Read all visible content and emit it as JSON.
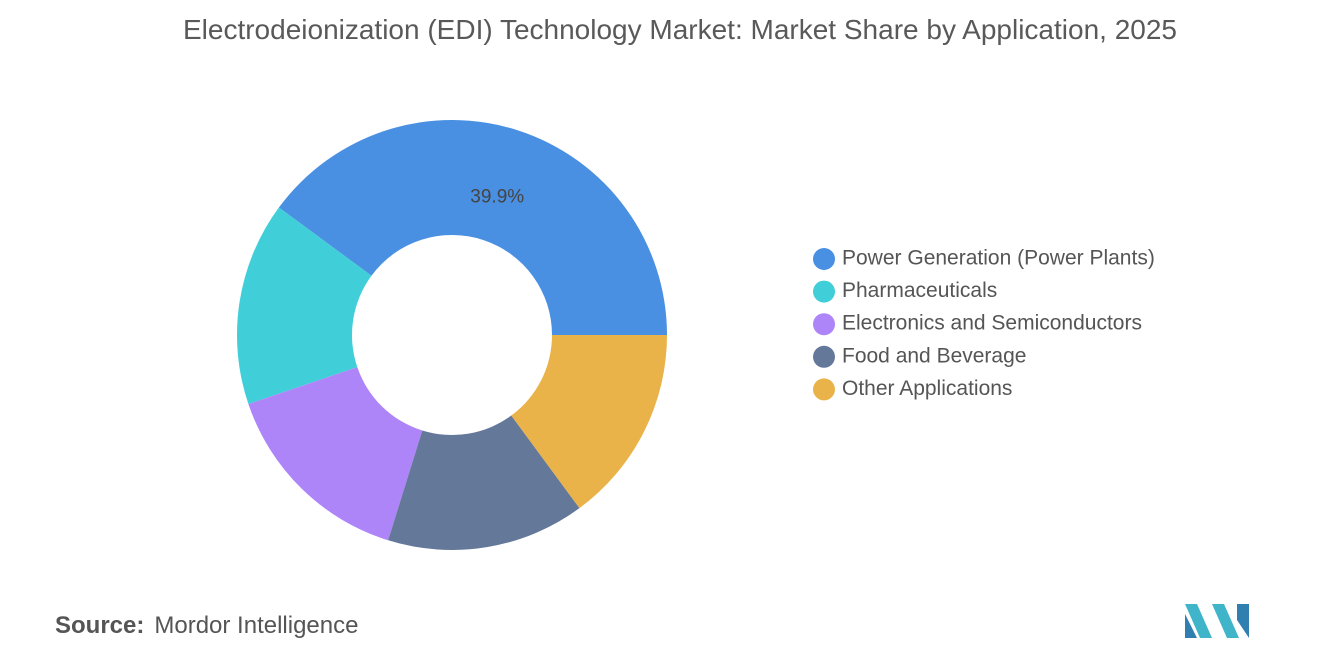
{
  "chart_data": {
    "type": "donut",
    "title": "Electrodeionization (EDI) Technology Market: Market Share by Application, 2025",
    "categories": [
      "Power Generation (Power Plants)",
      "Pharmaceuticals",
      "Electronics and Semiconductors",
      "Food and Beverage",
      "Other Applications"
    ],
    "values": [
      39.9,
      15.3,
      15.0,
      14.9,
      14.9
    ],
    "value_labels": [
      "39.9%",
      null,
      null,
      null,
      null
    ],
    "colors": [
      "#4a90e2",
      "#40cfd9",
      "#ae85f9",
      "#64789a",
      "#eab34a"
    ],
    "legend": "right"
  },
  "source_label": "Source:",
  "source": "Mordor Intelligence"
}
